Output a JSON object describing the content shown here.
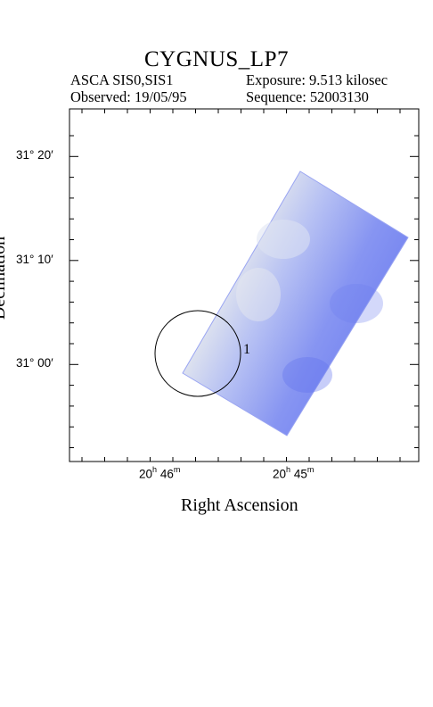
{
  "header": {
    "title": "CYGNUS_LP7",
    "instrument": "ASCA SIS0,SIS1",
    "exposure": "Exposure: 9.513 kilosec",
    "observed": "Observed: 19/05/95",
    "sequence": "Sequence: 52003130"
  },
  "axes": {
    "xlabel": "Right Ascension",
    "ylabel": "Declination",
    "x_ticks": [
      {
        "h": "20",
        "m": "46"
      },
      {
        "h": "20",
        "m": "45"
      }
    ],
    "y_ticks": [
      "31° 20′",
      "31° 10′",
      "31° 00′"
    ]
  },
  "annotation": {
    "source_label": "1"
  },
  "colors": {
    "frame": "#000000",
    "map_light": "#eef0e4",
    "map_mid": "#b8c3f3",
    "map_dark": "#6a7af0"
  }
}
